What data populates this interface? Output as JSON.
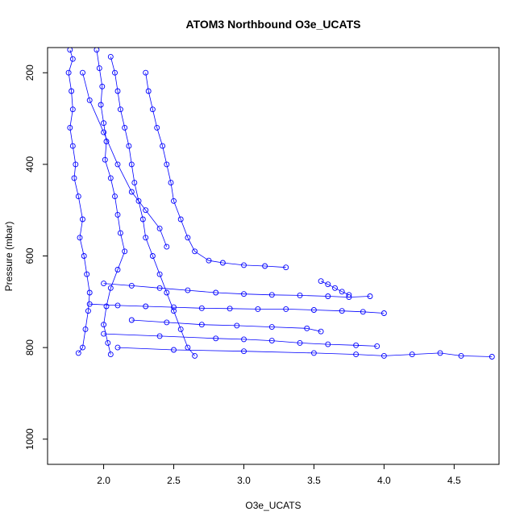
{
  "chart_data": {
    "type": "scatter",
    "title": "ATOM3 Northbound O3e_UCATS",
    "xlabel": "O3e_UCATS",
    "ylabel": "Pressure (mbar)",
    "xlim": [
      1.6,
      4.82
    ],
    "ylim": [
      1055,
      145
    ],
    "y_reversed": true,
    "grid": false,
    "legend": "none",
    "x_ticks": [
      "2.0",
      "2.5",
      "3.0",
      "3.5",
      "4.0",
      "4.5"
    ],
    "y_ticks": [
      "200",
      "400",
      "600",
      "800",
      "1000"
    ],
    "marker": "open-circle",
    "connected_by_lines": true,
    "series_color": "#0000ff",
    "series": [
      {
        "points": [
          [
            1.76,
            150
          ],
          [
            1.78,
            170
          ],
          [
            1.75,
            200
          ],
          [
            1.77,
            240
          ],
          [
            1.78,
            280
          ],
          [
            1.76,
            320
          ],
          [
            1.78,
            360
          ],
          [
            1.8,
            400
          ],
          [
            1.79,
            430
          ],
          [
            1.82,
            470
          ],
          [
            1.85,
            520
          ],
          [
            1.83,
            560
          ],
          [
            1.86,
            600
          ],
          [
            1.88,
            640
          ],
          [
            1.9,
            680
          ],
          [
            1.89,
            720
          ],
          [
            1.87,
            760
          ],
          [
            1.85,
            800
          ],
          [
            1.82,
            812
          ]
        ]
      },
      {
        "points": [
          [
            1.95,
            150
          ],
          [
            1.97,
            190
          ],
          [
            1.99,
            230
          ],
          [
            1.98,
            270
          ],
          [
            2.0,
            310
          ],
          [
            2.02,
            350
          ],
          [
            2.01,
            390
          ],
          [
            2.05,
            430
          ],
          [
            2.08,
            470
          ],
          [
            2.1,
            510
          ],
          [
            2.12,
            550
          ],
          [
            2.15,
            590
          ],
          [
            2.1,
            630
          ],
          [
            2.05,
            670
          ],
          [
            2.02,
            710
          ],
          [
            2.0,
            750
          ],
          [
            2.03,
            790
          ],
          [
            2.05,
            815
          ]
        ]
      },
      {
        "points": [
          [
            2.05,
            165
          ],
          [
            2.08,
            200
          ],
          [
            2.1,
            240
          ],
          [
            2.12,
            280
          ],
          [
            2.15,
            320
          ],
          [
            2.18,
            360
          ],
          [
            2.2,
            400
          ],
          [
            2.22,
            440
          ],
          [
            2.25,
            480
          ],
          [
            2.28,
            520
          ],
          [
            2.3,
            560
          ],
          [
            2.35,
            600
          ],
          [
            2.4,
            640
          ],
          [
            2.45,
            680
          ],
          [
            2.5,
            720
          ],
          [
            2.55,
            760
          ],
          [
            2.6,
            800
          ],
          [
            2.65,
            818
          ]
        ]
      },
      {
        "points": [
          [
            2.3,
            200
          ],
          [
            2.32,
            240
          ],
          [
            2.35,
            280
          ],
          [
            2.38,
            320
          ],
          [
            2.42,
            360
          ],
          [
            2.45,
            400
          ],
          [
            2.48,
            440
          ],
          [
            2.5,
            480
          ],
          [
            2.55,
            520
          ],
          [
            2.6,
            560
          ],
          [
            2.65,
            590
          ],
          [
            2.75,
            610
          ],
          [
            2.85,
            615
          ],
          [
            3.0,
            620
          ],
          [
            3.15,
            622
          ],
          [
            3.3,
            625
          ]
        ]
      },
      {
        "points": [
          [
            2.0,
            660
          ],
          [
            2.2,
            665
          ],
          [
            2.4,
            670
          ],
          [
            2.6,
            675
          ],
          [
            2.8,
            680
          ],
          [
            3.0,
            683
          ],
          [
            3.2,
            685
          ],
          [
            3.4,
            686
          ],
          [
            3.6,
            688
          ],
          [
            3.75,
            690
          ],
          [
            3.9,
            688
          ]
        ]
      },
      {
        "points": [
          [
            1.9,
            705
          ],
          [
            2.1,
            708
          ],
          [
            2.3,
            710
          ],
          [
            2.5,
            712
          ],
          [
            2.7,
            714
          ],
          [
            2.9,
            715
          ],
          [
            3.1,
            716
          ],
          [
            3.3,
            716
          ],
          [
            3.5,
            718
          ],
          [
            3.7,
            720
          ],
          [
            3.85,
            722
          ],
          [
            4.0,
            725
          ]
        ]
      },
      {
        "points": [
          [
            2.2,
            740
          ],
          [
            2.45,
            745
          ],
          [
            2.7,
            750
          ],
          [
            2.95,
            752
          ],
          [
            3.2,
            755
          ],
          [
            3.45,
            758
          ],
          [
            3.55,
            765
          ]
        ]
      },
      {
        "points": [
          [
            2.0,
            770
          ],
          [
            2.4,
            775
          ],
          [
            2.8,
            780
          ],
          [
            3.0,
            782
          ],
          [
            3.2,
            785
          ],
          [
            3.4,
            790
          ],
          [
            3.6,
            793
          ],
          [
            3.8,
            795
          ],
          [
            3.95,
            797
          ]
        ]
      },
      {
        "points": [
          [
            2.1,
            800
          ],
          [
            2.5,
            805
          ],
          [
            3.0,
            808
          ],
          [
            3.5,
            812
          ],
          [
            3.8,
            815
          ],
          [
            4.0,
            818
          ],
          [
            4.2,
            815
          ],
          [
            4.4,
            812
          ],
          [
            4.55,
            818
          ],
          [
            4.77,
            820
          ]
        ]
      },
      {
        "points": [
          [
            3.55,
            655
          ],
          [
            3.6,
            662
          ],
          [
            3.65,
            670
          ],
          [
            3.7,
            678
          ],
          [
            3.75,
            685
          ]
        ]
      },
      {
        "points": [
          [
            1.85,
            200
          ],
          [
            1.9,
            260
          ],
          [
            2.0,
            330
          ],
          [
            2.1,
            400
          ],
          [
            2.2,
            460
          ],
          [
            2.3,
            500
          ],
          [
            2.4,
            540
          ],
          [
            2.45,
            580
          ]
        ]
      }
    ]
  }
}
